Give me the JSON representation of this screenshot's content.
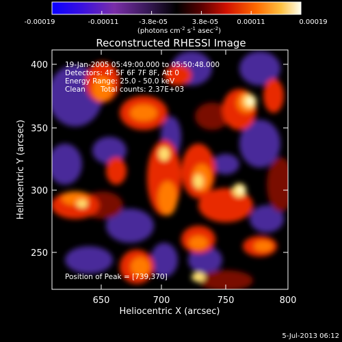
{
  "colorbar": {
    "tick_labels": [
      "-0.00019",
      "-0.00011",
      "-3.8e-05",
      "3.8e-05",
      "0.00011",
      "0.00019"
    ],
    "unit_main": "(photons cm",
    "unit_exp1": "-2",
    "unit_mid": " s",
    "unit_exp2": "-1",
    "unit_mid2": " asec",
    "unit_exp3": "-2",
    "unit_close": ")",
    "range": [
      -0.00019,
      0.00019
    ]
  },
  "plot": {
    "title": "Reconstructed RHESSI Image",
    "xlabel": "Heliocentric X (arcsec)",
    "ylabel": "Heliocentric Y (arcsec)",
    "x_ticks": [
      "650",
      "700",
      "750",
      "800"
    ],
    "y_ticks": [
      "250",
      "300",
      "350",
      "400"
    ],
    "xlim": [
      612,
      800
    ],
    "ylim": [
      219,
      410
    ]
  },
  "annotations": {
    "time_range": "19-Jan-2005 05:49:00.000 to 05:50:48.000",
    "detectors": "Detectors: 4F 5F 6F 7F 8F, Att 0",
    "energy": "Energy Range: 25.0 - 50.0 keV",
    "clean_label": "Clean",
    "total_counts": "Total counts: 2.37E+03",
    "peak": "Position of Peak = [739,370]"
  },
  "footer": {
    "timestamp": "5-Jul-2013 06:12"
  },
  "colors": {
    "background": "#000000",
    "colormap": [
      "#0000ff",
      "#6a2cbf",
      "#35205a",
      "#000000",
      "#7a0000",
      "#ff2a00",
      "#ff9a00",
      "#fff6b0"
    ]
  }
}
